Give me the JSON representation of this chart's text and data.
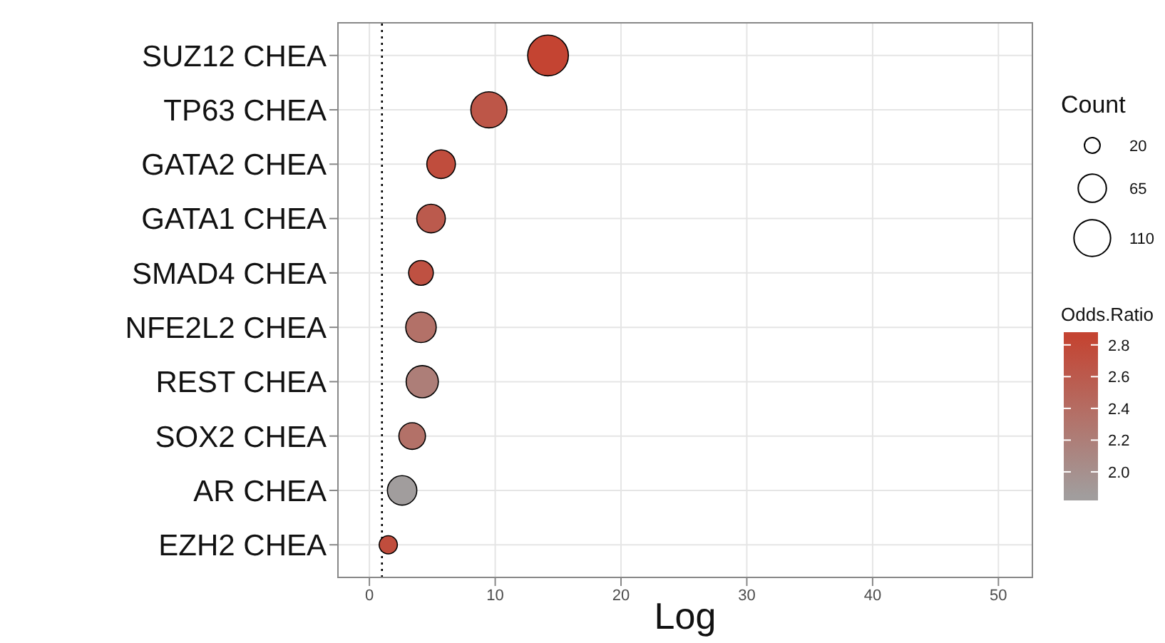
{
  "chart_data": {
    "type": "bubble",
    "categories": [
      "SUZ12 CHEA",
      "TP63 CHEA",
      "GATA2 CHEA",
      "GATA1 CHEA",
      "SMAD4 CHEA",
      "NFE2L2 CHEA",
      "REST CHEA",
      "SOX2 CHEA",
      "AR CHEA",
      "EZH2 CHEA"
    ],
    "values": [
      14.2,
      9.5,
      5.7,
      4.9,
      4.1,
      4.1,
      4.2,
      3.4,
      2.6,
      1.5
    ],
    "sizes": [
      136,
      107,
      67,
      67,
      50,
      76,
      85,
      58,
      71,
      27
    ],
    "size_legend": [
      20,
      65,
      110
    ],
    "cvalues": [
      2.85,
      2.65,
      2.75,
      2.6,
      2.7,
      2.35,
      2.2,
      2.35,
      1.85,
      2.75
    ],
    "clim": [
      1.82,
      2.88
    ],
    "cticks": [
      {
        "value": 2,
        "label": "2.0"
      },
      2.2,
      2.4,
      2.6,
      2.8
    ],
    "colors": [
      "#c44432",
      "#bd5648",
      "#c04d3d",
      "#bb5a4d",
      "#bf5142",
      "#b37168",
      "#ad7e78",
      "#b37168",
      "#a19d9d",
      "#c04d3d"
    ],
    "orientation": "horizontal",
    "xlabel": "Log",
    "legend_title": "Count",
    "clabel": "Odds.Ratio",
    "xlim": [
      -2.5,
      52.7
    ],
    "xticks": [
      0,
      10,
      20,
      30,
      40,
      50
    ],
    "ref_lines": [
      {
        "axis": "x",
        "value": 1,
        "line_style": "dotted",
        "color": "#000000"
      }
    ],
    "grid": true
  }
}
